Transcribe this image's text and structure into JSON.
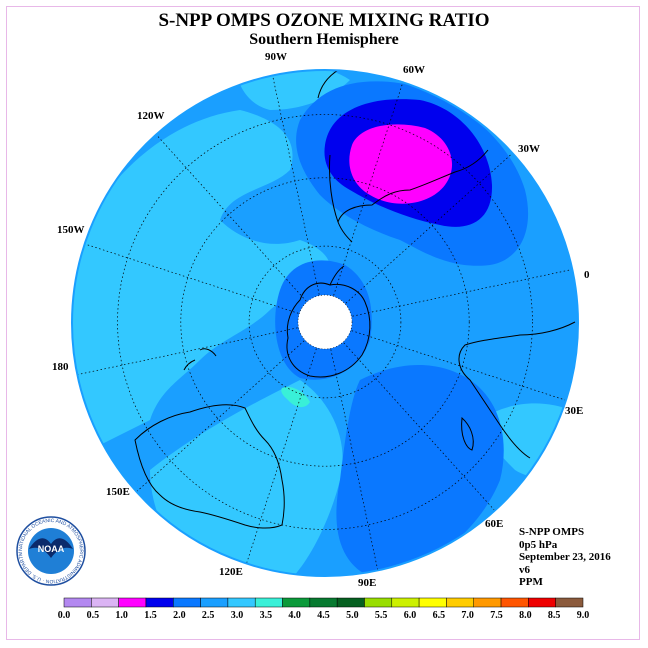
{
  "header": {
    "title": "S-NPP OMPS OZONE MIXING RATIO",
    "subtitle": "Southern Hemisphere"
  },
  "map": {
    "projection": "south-polar-stereographic",
    "longitude_labels": [
      "90W",
      "60W",
      "30W",
      "0",
      "30E",
      "60E",
      "90E",
      "120E",
      "150E",
      "180",
      "150W",
      "120W"
    ],
    "colors": {
      "background_field": "#1a9fff",
      "light_field": "#33c8ff",
      "cyan_field": "#39f0d8",
      "mid_blue": "#0a78ff",
      "dark_blue": "#0000ee",
      "max_magenta": "#ff00ff",
      "pole_missing": "#ffffff",
      "outline": "#1a9fff"
    },
    "features": {
      "maximum_region": "magenta (1.0–1.5 ppm) over South America / South Atlantic near 45W",
      "pole": "no data (white)"
    }
  },
  "info": {
    "instrument": "S-NPP OMPS",
    "level": "0p5 hPa",
    "date": "September 23, 2016",
    "version": "v6",
    "units": "PPM"
  },
  "colorbar": {
    "labels": [
      "0.0",
      "0.5",
      "1.0",
      "1.5",
      "2.0",
      "2.5",
      "3.0",
      "3.5",
      "4.0",
      "4.5",
      "5.0",
      "5.5",
      "6.0",
      "6.5",
      "7.0",
      "7.5",
      "8.0",
      "8.5",
      "9.0"
    ],
    "colors": [
      "#b388f0",
      "#dbb4f4",
      "#ff00ff",
      "#0000ee",
      "#0a78ff",
      "#1a9fff",
      "#33c8ff",
      "#39f0d8",
      "#0b9a3a",
      "#077a30",
      "#056020",
      "#99dd00",
      "#ccf000",
      "#ffff00",
      "#ffcc00",
      "#ff9900",
      "#ff5500",
      "#ee0000",
      "#8b5a3c"
    ]
  },
  "logo": {
    "text": "NOAA",
    "ring_text": "NATIONAL OCEANIC AND ATMOSPHERIC ADMINISTRATION · U.S. DEPARTMENT OF COMMERCE"
  }
}
